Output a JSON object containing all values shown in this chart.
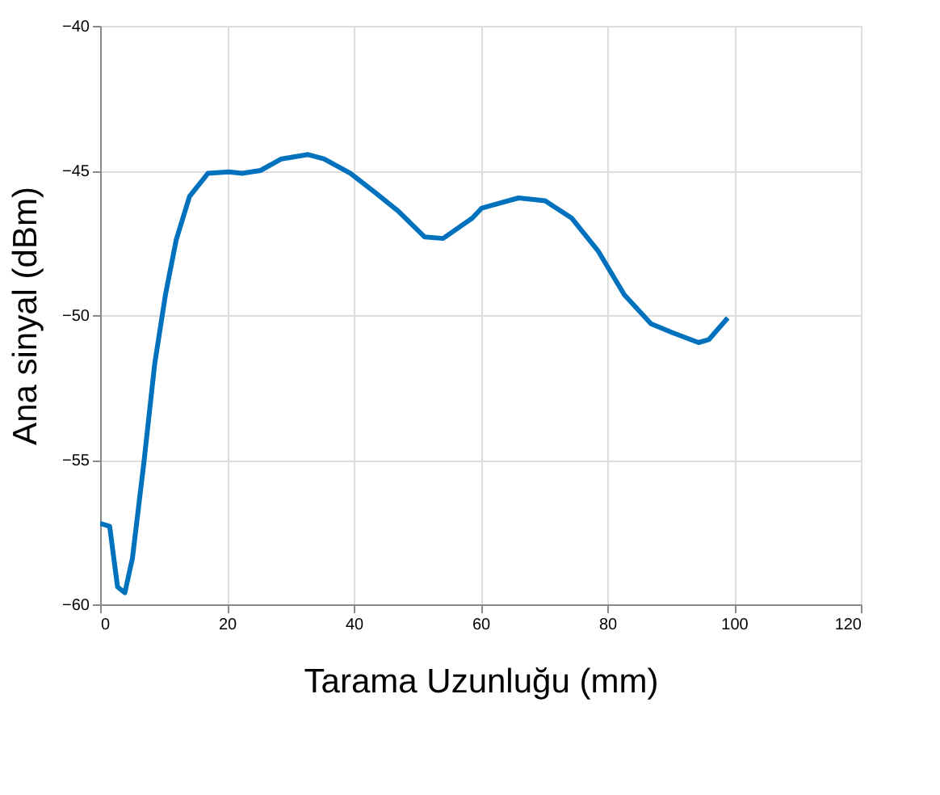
{
  "chart_data": {
    "type": "line",
    "xlabel": "Tarama Uzunluğu (mm)",
    "ylabel": "Ana sinyal (dBm)",
    "xlim": [
      0,
      120
    ],
    "xticks": [
      0,
      20,
      40,
      60,
      80,
      100,
      120
    ],
    "ylim": [
      -60,
      -40
    ],
    "yticks": [
      -60,
      -55,
      -50,
      -45,
      -40
    ],
    "grid": true,
    "series": [
      {
        "color": "#0072bd",
        "x": [
          0,
          1.5,
          2.75,
          3.9,
          5.1,
          6.9,
          8.6,
          10.3,
          12,
          14.1,
          17,
          20.3,
          22.4,
          25.3,
          28.6,
          32.8,
          35.3,
          39.5,
          43.6,
          47,
          51.2,
          54.1,
          58.7,
          60.2,
          66,
          70.2,
          74.4,
          78.6,
          82.7,
          86.9,
          90.2,
          94.4,
          96,
          99
        ],
        "values": [
          -57.2,
          -57.3,
          -59.4,
          -59.6,
          -58.4,
          -55.1,
          -51.7,
          -49.3,
          -47.4,
          -45.9,
          -45.1,
          -45.05,
          -45.1,
          -45,
          -44.6,
          -44.45,
          -44.6,
          -45.1,
          -45.8,
          -46.4,
          -47.3,
          -47.35,
          -46.65,
          -46.3,
          -45.95,
          -46.05,
          -46.65,
          -47.8,
          -49.3,
          -50.3,
          -50.6,
          -50.95,
          -50.85,
          -50.1
        ]
      }
    ]
  }
}
